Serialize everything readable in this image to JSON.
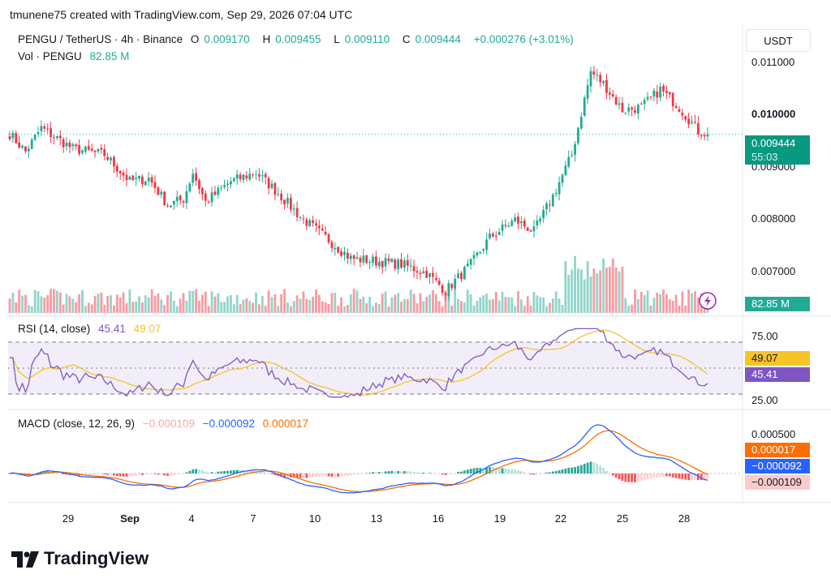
{
  "header": {
    "created_line": "tmunene75 created with TradingView.com, Sep 29, 2026 07:04 UTC"
  },
  "symbol": {
    "title": "PENGU / TetherUS · 4h · Binance",
    "o_label": "O",
    "o_value": "0.009170",
    "h_label": "H",
    "h_value": "0.009455",
    "l_label": "L",
    "l_value": "0.009110",
    "c_label": "C",
    "c_value": "0.009444",
    "change": "+0.000276 (+3.01%)"
  },
  "volume": {
    "label": "Vol · PENGU",
    "value": "82.85 M"
  },
  "currency_button": "USDT",
  "price_axis": {
    "ticks": [
      "0.011000",
      "0.010000",
      "0.009000",
      "0.008000",
      "0.007000"
    ],
    "last_price": "0.009444",
    "countdown": "55:03",
    "volume_tag": "82.85 M"
  },
  "rsi": {
    "label": "RSI (14, close)",
    "value": "45.41",
    "ma_value": "49.07",
    "ticks": [
      "75.00",
      "25.00"
    ]
  },
  "macd": {
    "label": "MACD (close, 12, 26, 9)",
    "hist": "−0.000109",
    "macd": "−0.000092",
    "signal": "0.000017",
    "tick": "0.000500"
  },
  "x_axis": {
    "labels": [
      "29",
      "Sep",
      "4",
      "7",
      "10",
      "13",
      "16",
      "19",
      "22",
      "25",
      "28"
    ]
  },
  "brand": "TradingView",
  "colors": {
    "up": "#22ab94",
    "down": "#f23645",
    "rsi": "#7e57c2",
    "rsi_ma": "#f7c325",
    "macd": "#2962ff",
    "signal": "#ff6d00"
  },
  "chart_data": {
    "type": "candlestick",
    "title": "PENGU / TetherUS · 4h · Binance",
    "ylim": [
      0.0064,
      0.0113
    ],
    "anchors": [
      {
        "i": 0,
        "close": 0.00945
      },
      {
        "i": 5,
        "close": 0.00915
      },
      {
        "i": 10,
        "close": 0.00955
      },
      {
        "i": 20,
        "close": 0.0092
      },
      {
        "i": 30,
        "close": 0.0091
      },
      {
        "i": 38,
        "close": 0.00865
      },
      {
        "i": 44,
        "close": 0.0087
      },
      {
        "i": 50,
        "close": 0.00825
      },
      {
        "i": 55,
        "close": 0.00835
      },
      {
        "i": 58,
        "close": 0.0088
      },
      {
        "i": 62,
        "close": 0.0083
      },
      {
        "i": 70,
        "close": 0.00865
      },
      {
        "i": 78,
        "close": 0.0088
      },
      {
        "i": 85,
        "close": 0.00845
      },
      {
        "i": 92,
        "close": 0.00805
      },
      {
        "i": 100,
        "close": 0.0077
      },
      {
        "i": 108,
        "close": 0.00735
      },
      {
        "i": 116,
        "close": 0.0073
      },
      {
        "i": 124,
        "close": 0.00725
      },
      {
        "i": 132,
        "close": 0.0071
      },
      {
        "i": 138,
        "close": 0.0068
      },
      {
        "i": 146,
        "close": 0.00725
      },
      {
        "i": 152,
        "close": 0.0077
      },
      {
        "i": 160,
        "close": 0.008
      },
      {
        "i": 166,
        "close": 0.0078
      },
      {
        "i": 172,
        "close": 0.0084
      },
      {
        "i": 178,
        "close": 0.0091
      },
      {
        "i": 184,
        "close": 0.0105
      },
      {
        "i": 188,
        "close": 0.0103
      },
      {
        "i": 194,
        "close": 0.00985
      },
      {
        "i": 200,
        "close": 0.0099
      },
      {
        "i": 206,
        "close": 0.0102
      },
      {
        "i": 212,
        "close": 0.0099
      },
      {
        "i": 218,
        "close": 0.0095
      },
      {
        "i": 221,
        "close": 0.009444
      }
    ],
    "last_close": 0.009444
  }
}
